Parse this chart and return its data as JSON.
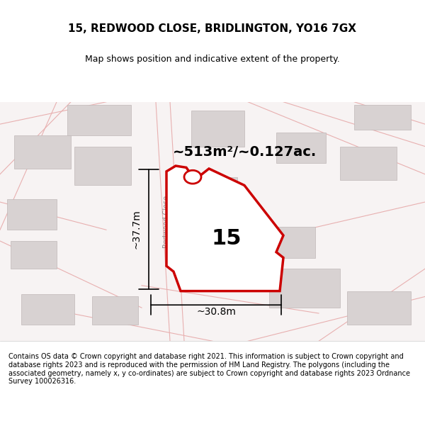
{
  "title": "15, REDWOOD CLOSE, BRIDLINGTON, YO16 7GX",
  "subtitle": "Map shows position and indicative extent of the property.",
  "footer": "Contains OS data © Crown copyright and database right 2021. This information is subject to Crown copyright and database rights 2023 and is reproduced with the permission of HM Land Registry. The polygons (including the associated geometry, namely x, y co-ordinates) are subject to Crown copyright and database rights 2023 Ordnance Survey 100026316.",
  "area_label": "~513m²/~0.127ac.",
  "number_label": "15",
  "width_label": "~30.8m",
  "height_label": "~37.7m",
  "bg_color": "#f5f0f0",
  "map_bg": "#f8f4f4",
  "plot_color": "#cc0000",
  "plot_fill": "#ffffff",
  "building_color": "#d8d0d0",
  "road_color": "#fafafa",
  "road_line_color": "#e8b0b0",
  "boundary_color": "#e8a0a0"
}
